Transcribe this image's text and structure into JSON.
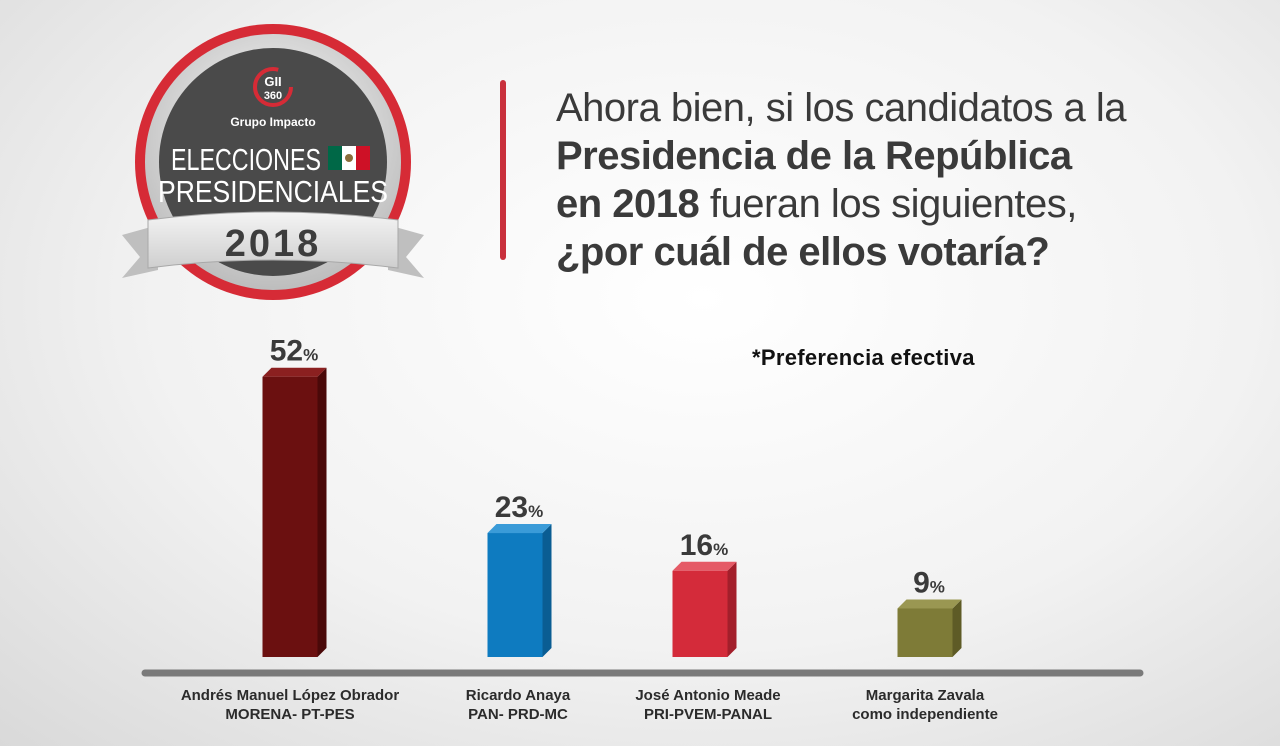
{
  "badge": {
    "logo_text": "GII 360",
    "org": "Grupo Impacto",
    "line1": "ELECCIONES",
    "line2": "PRESIDENCIALES",
    "year": "2018",
    "flag_colors": [
      "#006847",
      "#ffffff",
      "#ce1126"
    ]
  },
  "question": {
    "line1": "Ahora bien, si los candidatos a la",
    "line2_bold": "Presidencia de la República",
    "line3_bold": "en 2018",
    "line3_rest": " fueran los siguientes,",
    "line4_bold": "¿por cuál de ellos votaría?"
  },
  "note": "*Preferencia efectiva",
  "chart_data": {
    "type": "bar",
    "unit": "%",
    "ylim": [
      0,
      60
    ],
    "categories": [
      [
        "Andrés Manuel López Obrador",
        "MORENA- PT-PES"
      ],
      [
        "Ricardo Anaya",
        "PAN- PRD-MC"
      ],
      [
        "José Antonio Meade",
        "PRI-PVEM-PANAL"
      ],
      [
        "Margarita Zavala",
        "como independiente"
      ]
    ],
    "values": [
      52,
      23,
      16,
      9
    ],
    "colors": [
      "#6b1010",
      "#0e7bc0",
      "#d42b3a",
      "#7e7b37"
    ],
    "side_colors": [
      "#4a0909",
      "#0a5d93",
      "#a31f2b",
      "#5e5b26"
    ],
    "top_colors": [
      "#8b2020",
      "#3a9bd8",
      "#e55a66",
      "#9a9752"
    ]
  }
}
